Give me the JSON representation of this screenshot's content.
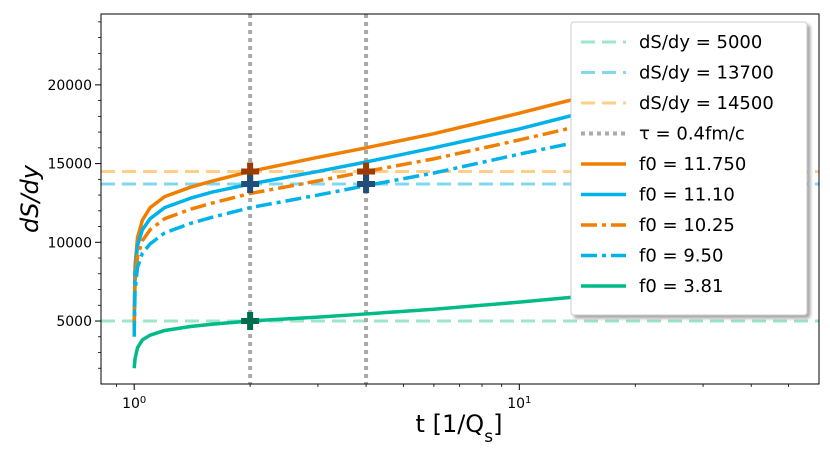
{
  "chart_data": {
    "type": "line",
    "xscale": "log",
    "xlim": [
      0.82,
      60
    ],
    "ylim": [
      1000,
      24500
    ],
    "xlabel": "t [1/Q_s]",
    "ylabel": "dS/dy",
    "xticks": [
      {
        "value": 1,
        "label": "10^0"
      },
      {
        "value": 10,
        "label": "10^1"
      }
    ],
    "yticks": [
      5000,
      10000,
      15000,
      20000
    ],
    "legend_placement": "top-right",
    "hlines": [
      {
        "name": "dS/dy = 5000",
        "value": 5000,
        "color": "#9ee6c8"
      },
      {
        "name": "dS/dy = 13700",
        "value": 13700,
        "color": "#7fd8ef"
      },
      {
        "name": "dS/dy = 14500",
        "value": 14500,
        "color": "#ffcf8a"
      }
    ],
    "vlines": {
      "name": "τ = 0.4fm/c",
      "values": [
        2,
        4
      ],
      "color": "#aaaaaa"
    },
    "series": [
      {
        "name": "f0 = 11.750",
        "color": "#f07f00",
        "style": "solid",
        "x": [
          1,
          1.005,
          1.02,
          1.05,
          1.1,
          1.2,
          1.4,
          1.6,
          2,
          3,
          4,
          6,
          10,
          15
        ],
        "y": [
          5000,
          8500,
          10300,
          11400,
          12200,
          12900,
          13500,
          13900,
          14500,
          15400,
          16000,
          16900,
          18200,
          19300
        ]
      },
      {
        "name": "f0 = 11.10",
        "color": "#00b2ea",
        "style": "solid",
        "x": [
          1,
          1.005,
          1.02,
          1.05,
          1.1,
          1.2,
          1.4,
          1.6,
          2,
          3,
          4,
          6,
          10,
          15
        ],
        "y": [
          4700,
          8000,
          9800,
          10800,
          11500,
          12200,
          12800,
          13200,
          13700,
          14500,
          15100,
          16000,
          17200,
          18300
        ]
      },
      {
        "name": "f0 = 10.25",
        "color": "#f07f00",
        "style": "dashdot",
        "x": [
          1,
          1.005,
          1.02,
          1.05,
          1.1,
          1.2,
          1.4,
          1.6,
          2,
          3,
          4,
          6,
          10,
          15
        ],
        "y": [
          4400,
          7500,
          9100,
          10100,
          10800,
          11500,
          12100,
          12500,
          13100,
          13900,
          14500,
          15300,
          16500,
          17500
        ]
      },
      {
        "name": "f0 = 9.50",
        "color": "#00b2ea",
        "style": "dashdot",
        "x": [
          1,
          1.005,
          1.02,
          1.05,
          1.1,
          1.2,
          1.4,
          1.6,
          2,
          3,
          4,
          6,
          10,
          15
        ],
        "y": [
          4000,
          6900,
          8400,
          9300,
          9900,
          10600,
          11200,
          11600,
          12200,
          13000,
          13600,
          14400,
          15600,
          16500
        ]
      },
      {
        "name": "f0 = 3.81",
        "color": "#00bb88",
        "style": "solid",
        "x": [
          1,
          1.005,
          1.02,
          1.05,
          1.1,
          1.2,
          1.4,
          1.6,
          2,
          3,
          4,
          6,
          10,
          15
        ],
        "y": [
          2000,
          2600,
          3300,
          3800,
          4100,
          4400,
          4650,
          4800,
          5000,
          5250,
          5450,
          5750,
          6200,
          6600
        ]
      }
    ],
    "markers": [
      {
        "x": 2,
        "y": 14500,
        "color": "#9a3b00"
      },
      {
        "x": 2,
        "y": 13700,
        "color": "#1f4e78"
      },
      {
        "x": 4,
        "y": 14500,
        "color": "#9a3b00"
      },
      {
        "x": 4,
        "y": 13700,
        "color": "#1f4e78"
      },
      {
        "x": 2,
        "y": 5000,
        "color": "#006e4e"
      }
    ]
  }
}
